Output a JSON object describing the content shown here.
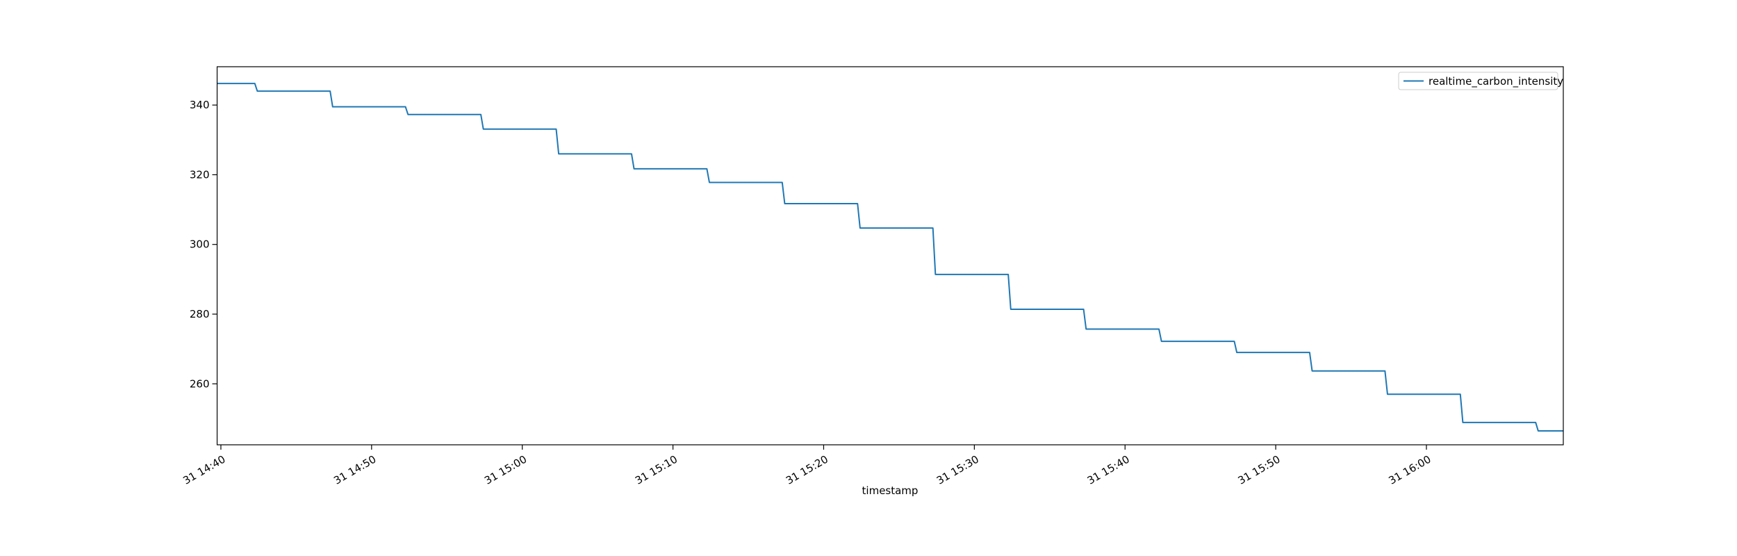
{
  "chart_data": {
    "type": "line",
    "title": "",
    "xlabel": "timestamp",
    "ylabel": "",
    "xlim": [
      "14:39:45",
      "16:09:05"
    ],
    "ylim": [
      242.5,
      351.0
    ],
    "x_ticks": [
      {
        "t": "14:40",
        "label": "31 14:40"
      },
      {
        "t": "14:50",
        "label": "31 14:50"
      },
      {
        "t": "15:00",
        "label": "31 15:00"
      },
      {
        "t": "15:10",
        "label": "31 15:10"
      },
      {
        "t": "15:20",
        "label": "31 15:20"
      },
      {
        "t": "15:30",
        "label": "31 15:30"
      },
      {
        "t": "15:40",
        "label": "31 15:40"
      },
      {
        "t": "15:50",
        "label": "31 15:50"
      },
      {
        "t": "16:00",
        "label": "31 16:00"
      }
    ],
    "y_ticks": [
      260,
      280,
      300,
      320,
      340
    ],
    "grid": false,
    "legend": "top-right",
    "series": [
      {
        "name": "realtime_carbon_intensity",
        "color": "#1f77b4",
        "points": [
          {
            "x": "14:39:45",
            "y": 346.2
          },
          {
            "x": "14:42:15",
            "y": 346.2
          },
          {
            "x": "14:42:25",
            "y": 344.0
          },
          {
            "x": "14:47:15",
            "y": 344.0
          },
          {
            "x": "14:47:25",
            "y": 339.5
          },
          {
            "x": "14:52:15",
            "y": 339.5
          },
          {
            "x": "14:52:25",
            "y": 337.3
          },
          {
            "x": "14:57:15",
            "y": 337.3
          },
          {
            "x": "14:57:25",
            "y": 333.1
          },
          {
            "x": "15:02:15",
            "y": 333.1
          },
          {
            "x": "15:02:25",
            "y": 326.0
          },
          {
            "x": "15:07:15",
            "y": 326.0
          },
          {
            "x": "15:07:25",
            "y": 321.7
          },
          {
            "x": "15:12:15",
            "y": 321.7
          },
          {
            "x": "15:12:25",
            "y": 317.8
          },
          {
            "x": "15:17:15",
            "y": 317.8
          },
          {
            "x": "15:17:25",
            "y": 311.7
          },
          {
            "x": "15:22:15",
            "y": 311.7
          },
          {
            "x": "15:22:25",
            "y": 304.7
          },
          {
            "x": "15:27:15",
            "y": 304.7
          },
          {
            "x": "15:27:25",
            "y": 291.4
          },
          {
            "x": "15:32:15",
            "y": 291.4
          },
          {
            "x": "15:32:25",
            "y": 281.4
          },
          {
            "x": "15:37:15",
            "y": 281.4
          },
          {
            "x": "15:37:25",
            "y": 275.7
          },
          {
            "x": "15:42:15",
            "y": 275.7
          },
          {
            "x": "15:42:25",
            "y": 272.2
          },
          {
            "x": "15:47:15",
            "y": 272.2
          },
          {
            "x": "15:47:25",
            "y": 269.0
          },
          {
            "x": "15:52:15",
            "y": 269.0
          },
          {
            "x": "15:52:25",
            "y": 263.7
          },
          {
            "x": "15:57:15",
            "y": 263.7
          },
          {
            "x": "15:57:25",
            "y": 257.0
          },
          {
            "x": "16:02:15",
            "y": 257.0
          },
          {
            "x": "16:02:25",
            "y": 248.9
          },
          {
            "x": "16:07:15",
            "y": 248.9
          },
          {
            "x": "16:07:25",
            "y": 246.5
          },
          {
            "x": "16:09:05",
            "y": 246.5
          }
        ]
      }
    ]
  }
}
